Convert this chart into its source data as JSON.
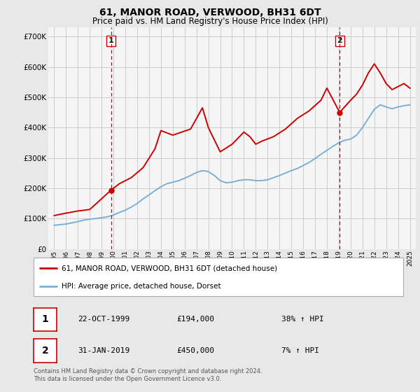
{
  "title": "61, MANOR ROAD, VERWOOD, BH31 6DT",
  "subtitle": "Price paid vs. HM Land Registry's House Price Index (HPI)",
  "legend_line1": "61, MANOR ROAD, VERWOOD, BH31 6DT (detached house)",
  "legend_line2": "HPI: Average price, detached house, Dorset",
  "transaction1_date": "22-OCT-1999",
  "transaction1_price": "£194,000",
  "transaction1_hpi": "38% ↑ HPI",
  "transaction2_date": "31-JAN-2019",
  "transaction2_price": "£450,000",
  "transaction2_hpi": "7% ↑ HPI",
  "footer": "Contains HM Land Registry data © Crown copyright and database right 2024.\nThis data is licensed under the Open Government Licence v3.0.",
  "red_color": "#cc0000",
  "blue_color": "#7ab0d4",
  "grid_color": "#cccccc",
  "background_color": "#e8e8e8",
  "plot_bg_color": "#f5f5f5",
  "ylim": [
    0,
    730000
  ],
  "yticks": [
    0,
    100000,
    200000,
    300000,
    400000,
    500000,
    600000,
    700000
  ],
  "xmin": 1994.5,
  "xmax": 2025.5,
  "transaction1_x": 1999.8,
  "transaction1_y": 194000,
  "transaction2_x": 2019.08,
  "transaction2_y": 450000,
  "hpi_x": [
    1995.0,
    1995.5,
    1996.0,
    1996.5,
    1997.0,
    1997.5,
    1998.0,
    1998.5,
    1999.0,
    1999.5,
    2000.0,
    2000.5,
    2001.0,
    2001.5,
    2002.0,
    2002.5,
    2003.0,
    2003.5,
    2004.0,
    2004.5,
    2005.0,
    2005.5,
    2006.0,
    2006.5,
    2007.0,
    2007.5,
    2008.0,
    2008.5,
    2009.0,
    2009.5,
    2010.0,
    2010.5,
    2011.0,
    2011.5,
    2012.0,
    2012.5,
    2013.0,
    2013.5,
    2014.0,
    2014.5,
    2015.0,
    2015.5,
    2016.0,
    2016.5,
    2017.0,
    2017.5,
    2018.0,
    2018.5,
    2019.0,
    2019.5,
    2020.0,
    2020.5,
    2021.0,
    2021.5,
    2022.0,
    2022.5,
    2023.0,
    2023.5,
    2024.0,
    2024.5,
    2025.0
  ],
  "hpi_y": [
    78000,
    80000,
    82000,
    86000,
    90000,
    95000,
    98000,
    100000,
    103000,
    106000,
    112000,
    120000,
    128000,
    138000,
    150000,
    165000,
    178000,
    192000,
    205000,
    215000,
    220000,
    225000,
    233000,
    242000,
    252000,
    258000,
    255000,
    242000,
    225000,
    218000,
    220000,
    225000,
    228000,
    228000,
    225000,
    225000,
    228000,
    235000,
    242000,
    250000,
    258000,
    265000,
    275000,
    285000,
    298000,
    312000,
    325000,
    338000,
    350000,
    358000,
    362000,
    375000,
    400000,
    430000,
    460000,
    475000,
    468000,
    462000,
    468000,
    472000,
    475000
  ],
  "price_x": [
    1995.0,
    1996.0,
    1997.0,
    1998.0,
    1999.8,
    2000.5,
    2001.5,
    2002.5,
    2003.5,
    2004.0,
    2005.0,
    2006.5,
    2007.5,
    2008.0,
    2009.0,
    2010.0,
    2010.5,
    2011.0,
    2011.5,
    2012.0,
    2012.5,
    2013.5,
    2014.5,
    2015.5,
    2016.5,
    2017.5,
    2018.0,
    2019.08,
    2020.0,
    2020.5,
    2021.0,
    2021.5,
    2022.0,
    2022.5,
    2023.0,
    2023.5,
    2024.0,
    2024.5,
    2025.0
  ],
  "price_y": [
    110000,
    118000,
    125000,
    130000,
    194000,
    215000,
    235000,
    268000,
    330000,
    390000,
    375000,
    395000,
    465000,
    400000,
    320000,
    345000,
    365000,
    385000,
    370000,
    345000,
    355000,
    370000,
    395000,
    430000,
    455000,
    490000,
    530000,
    450000,
    490000,
    510000,
    540000,
    580000,
    610000,
    580000,
    545000,
    525000,
    535000,
    545000,
    530000
  ]
}
